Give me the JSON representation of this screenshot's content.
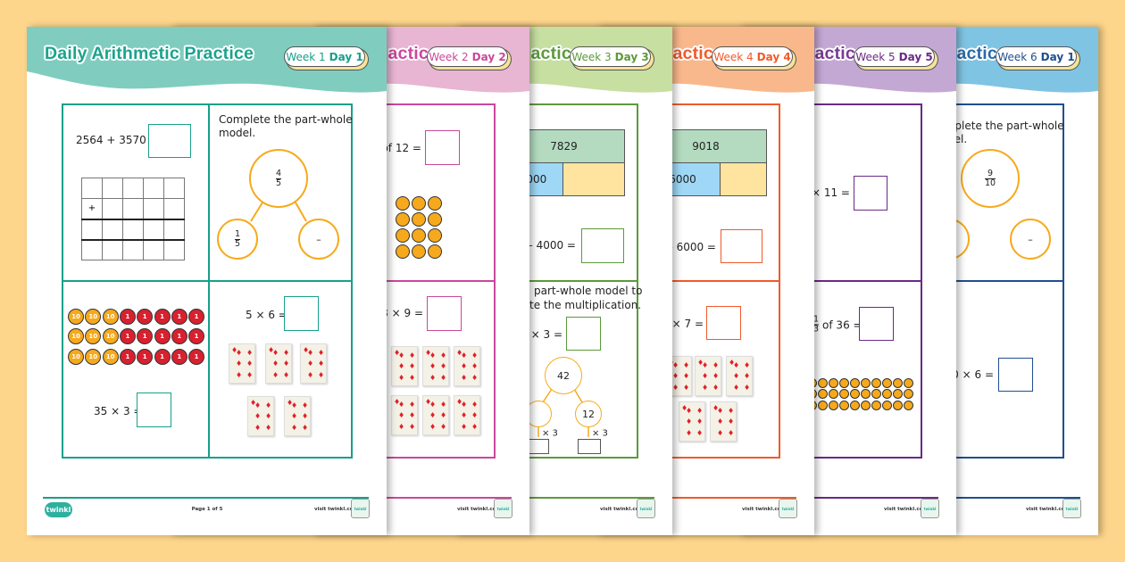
{
  "background_color": "#fdd58b",
  "title": "Daily Arithmetic Practice",
  "footer": {
    "page": "Page 1 of 5",
    "url": "visit twinkl.com",
    "logo": "twinkl",
    "badge_logo": "twinkl quality"
  },
  "sheets": [
    {
      "week": "Week 1",
      "day": "Day 1",
      "color": "#17a08a",
      "header_color": "#80cdc0",
      "title_color": "#1ba38d"
    },
    {
      "week": "Week 2",
      "day": "Day 2",
      "color": "#c9489b",
      "header_color": "#e8b5d3",
      "title_color": "#c9489b"
    },
    {
      "week": "Week 3",
      "day": "Day 3",
      "color": "#5c9a3a",
      "header_color": "#c7dfa1",
      "title_color": "#5c9a3a"
    },
    {
      "week": "Week 4",
      "day": "Day 4",
      "color": "#f05a2a",
      "header_color": "#f9b88c",
      "title_color": "#f05a2a"
    },
    {
      "week": "Week 5",
      "day": "Day 5",
      "color": "#6a2a86",
      "header_color": "#c4a8d4",
      "title_color": "#7a3a96"
    },
    {
      "week": "Week 6",
      "day": "Day 1",
      "color": "#1f4f8f",
      "header_color": "#80c4e3",
      "title_color": "#2a6aa8"
    }
  ],
  "s1": {
    "q1": "2564 + 3570 =",
    "grid_sign": "+",
    "q2": {
      "instruction": "Complete the part-whole model.",
      "whole_num": "4",
      "whole_den": "5",
      "part_num": "1",
      "part_den": "5",
      "blank": "–"
    },
    "q3": "35 × 3 =",
    "coin_tens": "10",
    "coin_ones": "1",
    "q4": "5 × 6 ="
  },
  "s2": {
    "q1": "of 12 =",
    "q3": "8 × 9 ="
  },
  "s3": {
    "bar_whole": "7829",
    "bar_part": "4000",
    "q1": "– 4000 =",
    "instr1": "part-whole model to",
    "instr2": "te the multiplication.",
    "q2": "2 × 3 =",
    "whole": "42",
    "part": "12",
    "op_left": "× 3",
    "op_right": "× 3"
  },
  "s4": {
    "bar_whole": "9018",
    "bar_part": "6000",
    "q1": "– 6000 =",
    "q2": "5 × 7 ="
  },
  "s5": {
    "q1": "5 × 11 =",
    "frac_num": "1",
    "frac_den": "3",
    "q2": "of 36 ="
  },
  "s6": {
    "instruction": "Complete the part-whole model.",
    "whole_num": "9",
    "whole_den": "10",
    "blank": "–",
    "q2": "0 × 6 ="
  }
}
